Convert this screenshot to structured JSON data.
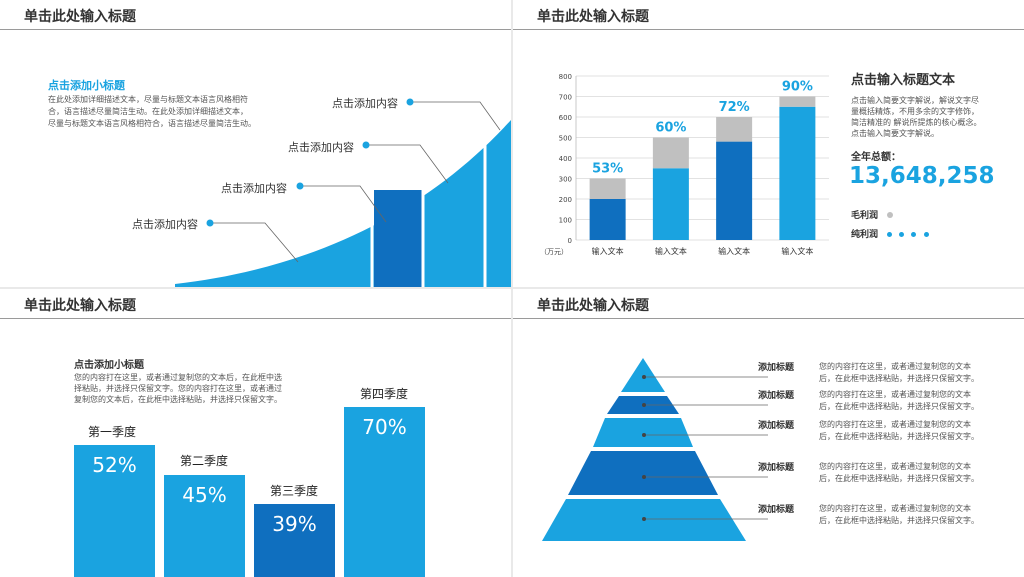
{
  "panel1": {
    "title": "单击此处输入标题",
    "subtitle": "点击添加小标题",
    "desc": [
      "在此处添加详细描述文本，尽量与标题文本语言风格相符",
      "合，语言描述尽量简洁生动。在此处添加详细描述文本，",
      "尽量与标题文本语言风格相符合，语言描述尽量简洁生动。"
    ],
    "labels": [
      "点击添加内容",
      "点击添加内容",
      "点击添加内容",
      "点击添加内容"
    ]
  },
  "panel2": {
    "title": "单击此处输入标题",
    "side_title": "点击输入标题文本",
    "side_desc": [
      "点击输入简要文字解说，解说文字尽",
      "量概括精炼，不用多余的文字修饰，",
      "简洁精准的 解说所提炼的核心概念。",
      "点击输入简要文字解说。"
    ],
    "total_label": "全年总额：",
    "total_value": "13,648,258",
    "legend": [
      {
        "label": "毛利润",
        "color": "#c0c0c0"
      },
      {
        "label": "纯利润",
        "color": "#1aa3e0"
      }
    ],
    "y_unit": "（万元）"
  },
  "chart_data": {
    "type": "bar",
    "categories": [
      "输入文本",
      "输入文本",
      "输入文本",
      "输入文本"
    ],
    "series": [
      {
        "name": "纯利润",
        "values": [
          200,
          350,
          480,
          650
        ]
      },
      {
        "name": "毛利润",
        "values": [
          100,
          150,
          120,
          50
        ]
      }
    ],
    "data_labels": [
      "53%",
      "60%",
      "72%",
      "90%"
    ],
    "ylim": [
      0,
      800
    ],
    "yticks": [
      0,
      100,
      200,
      300,
      400,
      500,
      600,
      700,
      800
    ],
    "grid": true
  },
  "panel3": {
    "title": "单击此处输入标题",
    "subtitle": "点击添加小标题",
    "desc": [
      "您的内容打在这里，或者通过复制您的文本后，在此框中选",
      "择粘贴，并选择只保留文字。您的内容打在这里，或者通过",
      "复制您的文本后，在此框中选择粘贴，并选择只保留文字。"
    ],
    "bars": [
      {
        "label": "第一季度",
        "value": "52%",
        "color": "#1aa3e0"
      },
      {
        "label": "第二季度",
        "value": "45%",
        "color": "#1aa3e0"
      },
      {
        "label": "第三季度",
        "value": "39%",
        "color": "#0f6fbf"
      },
      {
        "label": "第四季度",
        "value": "70%",
        "color": "#1aa3e0"
      }
    ]
  },
  "panel4": {
    "title": "单击此处输入标题",
    "items": [
      {
        "title": "添加标题",
        "text": [
          "您的内容打在这里，或者通过复制您的文本",
          "后，在此框中选择粘贴，并选择只保留文字。"
        ]
      },
      {
        "title": "添加标题",
        "text": [
          "您的内容打在这里，或者通过复制您的文本",
          "后，在此框中选择粘贴，并选择只保留文字。"
        ]
      },
      {
        "title": "添加标题",
        "text": [
          "您的内容打在这里，或者通过复制您的文本",
          "后，在此框中选择粘贴，并选择只保留文字。"
        ]
      },
      {
        "title": "添加标题",
        "text": [
          "您的内容打在这里，或者通过复制您的文本",
          "后，在此框中选择粘贴，并选择只保留文字。"
        ]
      },
      {
        "title": "添加标题",
        "text": [
          "您的内容打在这里，或者通过复制您的文本",
          "后，在此框中选择粘贴，并选择只保留文字。"
        ]
      }
    ]
  }
}
